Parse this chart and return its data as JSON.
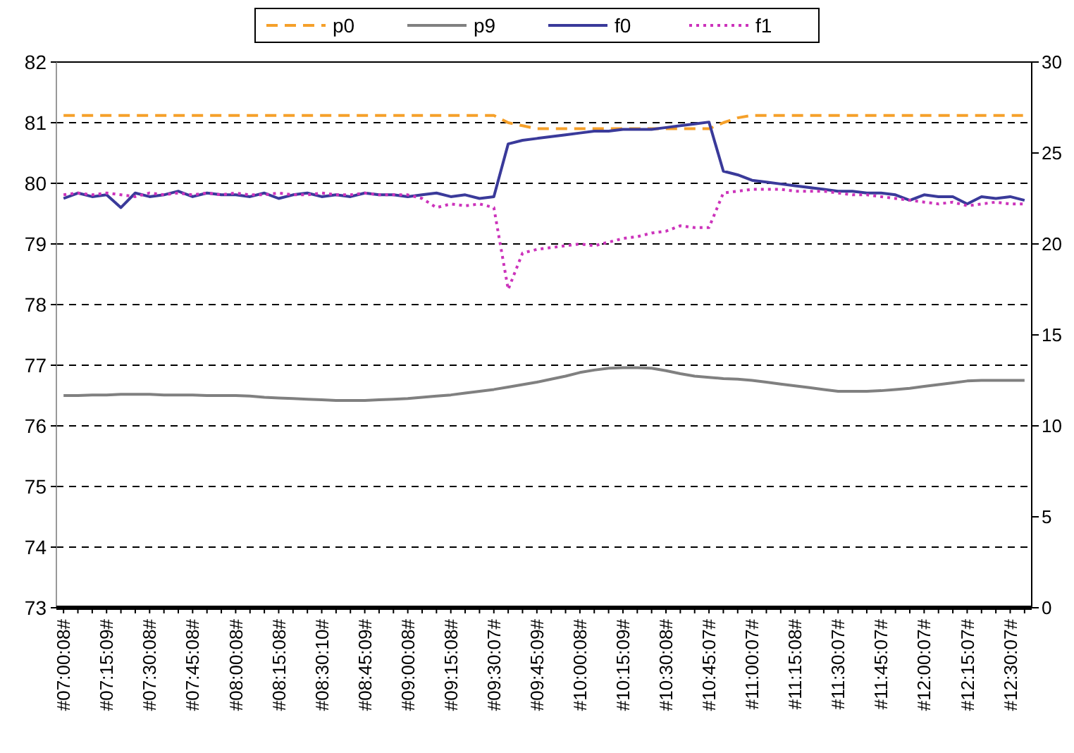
{
  "chart_data": {
    "type": "line",
    "legend": "top",
    "grid": "y",
    "ylim": [
      73,
      82
    ],
    "yticks": [
      73,
      74,
      75,
      76,
      77,
      78,
      79,
      80,
      81,
      82
    ],
    "y2lim": [
      0,
      30
    ],
    "y2ticks": [
      0,
      5,
      10,
      15,
      20,
      25,
      30
    ],
    "categories": [
      "#07:00:08#",
      null,
      null,
      "#07:15:09#",
      null,
      null,
      "#07:30:08#",
      null,
      null,
      "#07:45:08#",
      null,
      null,
      "#08:00:08#",
      null,
      null,
      "#08:15:08#",
      null,
      null,
      "#08:30:10#",
      null,
      null,
      "#08:45:09#",
      null,
      null,
      "#09:00:08#",
      null,
      null,
      "#09:15:08#",
      null,
      null,
      "#09:30:07#",
      null,
      null,
      "#09:45:09#",
      null,
      null,
      "#10:00:08#",
      null,
      null,
      "#10:15:09#",
      null,
      null,
      "#10:30:08#",
      null,
      null,
      "#10:45:07#",
      null,
      null,
      "#11:00:07#",
      null,
      null,
      "#11:15:08#",
      null,
      null,
      "#11:30:07#",
      null,
      null,
      "#11:45:07#",
      null,
      null,
      "#12:00:07#",
      null,
      null,
      "#12:15:07#",
      null,
      null,
      "#12:30:07#",
      null
    ],
    "series": [
      {
        "name": "p0",
        "color": "#f5a02a",
        "line_style": "dashed",
        "values": [
          81.12,
          81.12,
          81.12,
          81.12,
          81.12,
          81.12,
          81.12,
          81.12,
          81.12,
          81.12,
          81.12,
          81.12,
          81.12,
          81.12,
          81.12,
          81.12,
          81.12,
          81.12,
          81.12,
          81.12,
          81.12,
          81.12,
          81.12,
          81.12,
          81.12,
          81.12,
          81.12,
          81.12,
          81.12,
          81.12,
          81.12,
          81.0,
          80.95,
          80.9,
          80.9,
          80.9,
          80.9,
          80.9,
          80.9,
          80.9,
          80.9,
          80.9,
          80.9,
          80.9,
          80.9,
          80.9,
          81.0,
          81.08,
          81.12,
          81.12,
          81.12,
          81.12,
          81.12,
          81.12,
          81.12,
          81.12,
          81.12,
          81.12,
          81.12,
          81.12,
          81.12,
          81.12,
          81.12,
          81.12,
          81.12,
          81.12,
          81.12,
          81.12
        ]
      },
      {
        "name": "p9",
        "color": "#808080",
        "line_style": "solid",
        "values": [
          76.5,
          76.5,
          76.51,
          76.51,
          76.52,
          76.52,
          76.52,
          76.51,
          76.51,
          76.51,
          76.5,
          76.5,
          76.5,
          76.49,
          76.47,
          76.46,
          76.45,
          76.44,
          76.43,
          76.42,
          76.42,
          76.42,
          76.43,
          76.44,
          76.45,
          76.47,
          76.49,
          76.51,
          76.54,
          76.57,
          76.6,
          76.64,
          76.68,
          76.72,
          76.77,
          76.82,
          76.88,
          76.92,
          76.95,
          76.96,
          76.96,
          76.95,
          76.91,
          76.86,
          76.82,
          76.8,
          76.78,
          76.77,
          76.75,
          76.72,
          76.69,
          76.66,
          76.63,
          76.6,
          76.57,
          76.57,
          76.57,
          76.58,
          76.6,
          76.62,
          76.65,
          76.68,
          76.71,
          76.74,
          76.75,
          76.75,
          76.75,
          76.75
        ]
      },
      {
        "name": "f0",
        "color": "#3a3a9a",
        "line_style": "solid",
        "axis": "y2",
        "values": [
          22.5,
          22.8,
          22.6,
          22.7,
          22.0,
          22.8,
          22.6,
          22.7,
          22.9,
          22.6,
          22.8,
          22.7,
          22.7,
          22.6,
          22.8,
          22.5,
          22.7,
          22.8,
          22.6,
          22.7,
          22.6,
          22.8,
          22.7,
          22.7,
          22.6,
          22.7,
          22.8,
          22.6,
          22.7,
          22.5,
          22.6,
          25.5,
          25.7,
          25.8,
          25.9,
          26.0,
          26.1,
          26.2,
          26.2,
          26.3,
          26.3,
          26.3,
          26.4,
          26.5,
          26.6,
          26.7,
          24.0,
          23.8,
          23.5,
          23.4,
          23.3,
          23.2,
          23.1,
          23.0,
          22.9,
          22.9,
          22.8,
          22.8,
          22.7,
          22.4,
          22.7,
          22.6,
          22.6,
          22.2,
          22.6,
          22.5,
          22.6,
          22.4
        ]
      },
      {
        "name": "f1",
        "color": "#cc33bb",
        "line_style": "dotted",
        "axis": "y2",
        "values": [
          22.7,
          22.8,
          22.7,
          22.8,
          22.7,
          22.6,
          22.8,
          22.7,
          22.8,
          22.7,
          22.8,
          22.7,
          22.8,
          22.7,
          22.7,
          22.8,
          22.7,
          22.7,
          22.8,
          22.7,
          22.7,
          22.8,
          22.7,
          22.7,
          22.7,
          22.5,
          22.0,
          22.2,
          22.1,
          22.2,
          22.0,
          17.5,
          19.5,
          19.7,
          19.8,
          19.9,
          20.0,
          19.9,
          20.1,
          20.3,
          20.4,
          20.6,
          20.7,
          21.0,
          20.9,
          20.9,
          22.8,
          22.9,
          23.0,
          23.0,
          23.0,
          22.9,
          22.9,
          22.9,
          22.8,
          22.7,
          22.7,
          22.6,
          22.5,
          22.4,
          22.3,
          22.2,
          22.3,
          22.1,
          22.2,
          22.3,
          22.2,
          22.2
        ]
      }
    ]
  }
}
